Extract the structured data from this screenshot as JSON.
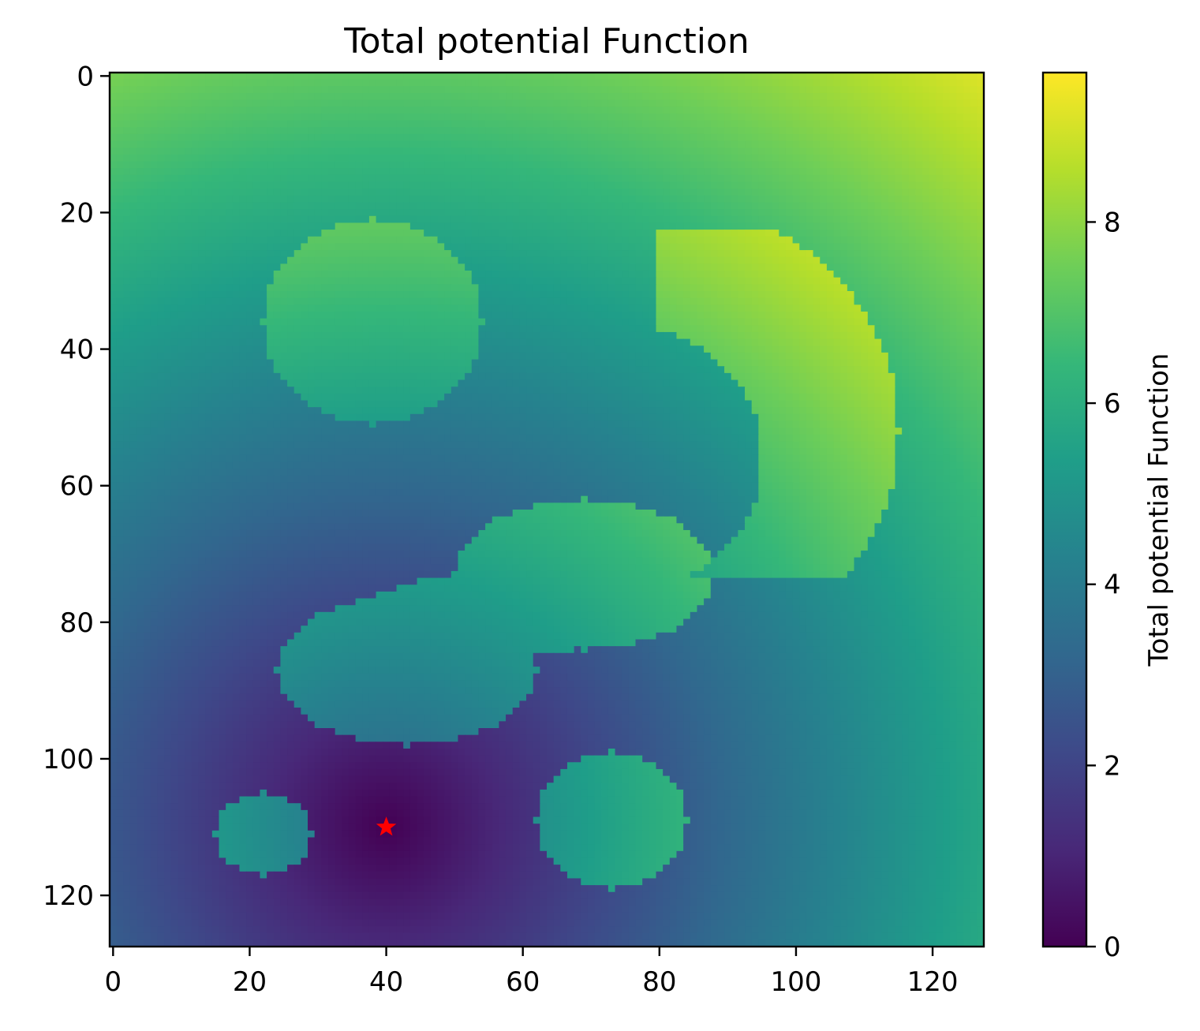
{
  "chart_data": {
    "type": "heatmap",
    "title": "Total potential Function",
    "xlabel": "",
    "ylabel": "",
    "x_ticks": [
      "0",
      "20",
      "40",
      "60",
      "80",
      "100",
      "120"
    ],
    "y_ticks": [
      "0",
      "20",
      "40",
      "60",
      "80",
      "100",
      "120"
    ],
    "xlim": [
      -0.5,
      127.5
    ],
    "ylim": [
      127.5,
      -0.5
    ],
    "y_inverted": true,
    "grid_size": [
      128,
      128
    ],
    "colormap": "viridis",
    "colorbar": {
      "label": "Total potential Function",
      "ticks": [
        "0",
        "2",
        "4",
        "6",
        "8"
      ],
      "range": [
        0,
        9.65
      ]
    },
    "background_field": "distance-based potential: minimum near the marked point (~0), rising toward the top-right corner (~9.6)",
    "obstacles": [
      {
        "name": "obstacle-top-left",
        "center": [
          38,
          36
        ],
        "radius_x": 16,
        "radius_y": 15,
        "value_approx": 6.9
      },
      {
        "name": "obstacle-top-right",
        "center": [
          102,
          44
        ],
        "shape": "crescent",
        "value_approx": 8.2
      },
      {
        "name": "obstacle-middle",
        "center": [
          60,
          79
        ],
        "shape": "elongated",
        "value_approx": 4.8
      },
      {
        "name": "obstacle-bottom-left",
        "center": [
          22,
          111
        ],
        "radius_x": 7,
        "radius_y": 6,
        "value_approx": 4.7
      },
      {
        "name": "obstacle-bottom-right",
        "center": [
          73,
          109
        ],
        "radius_x": 11,
        "radius_y": 10,
        "value_approx": 4.6
      }
    ],
    "marker": {
      "shape": "star",
      "x": 40,
      "y": 110,
      "color": "#ff0000",
      "label": ""
    },
    "colors": {
      "viridis": [
        "#440154",
        "#482878",
        "#3e4989",
        "#31688e",
        "#26828e",
        "#1f9e89",
        "#35b779",
        "#6ece58",
        "#b5de2b",
        "#fde725"
      ]
    }
  }
}
